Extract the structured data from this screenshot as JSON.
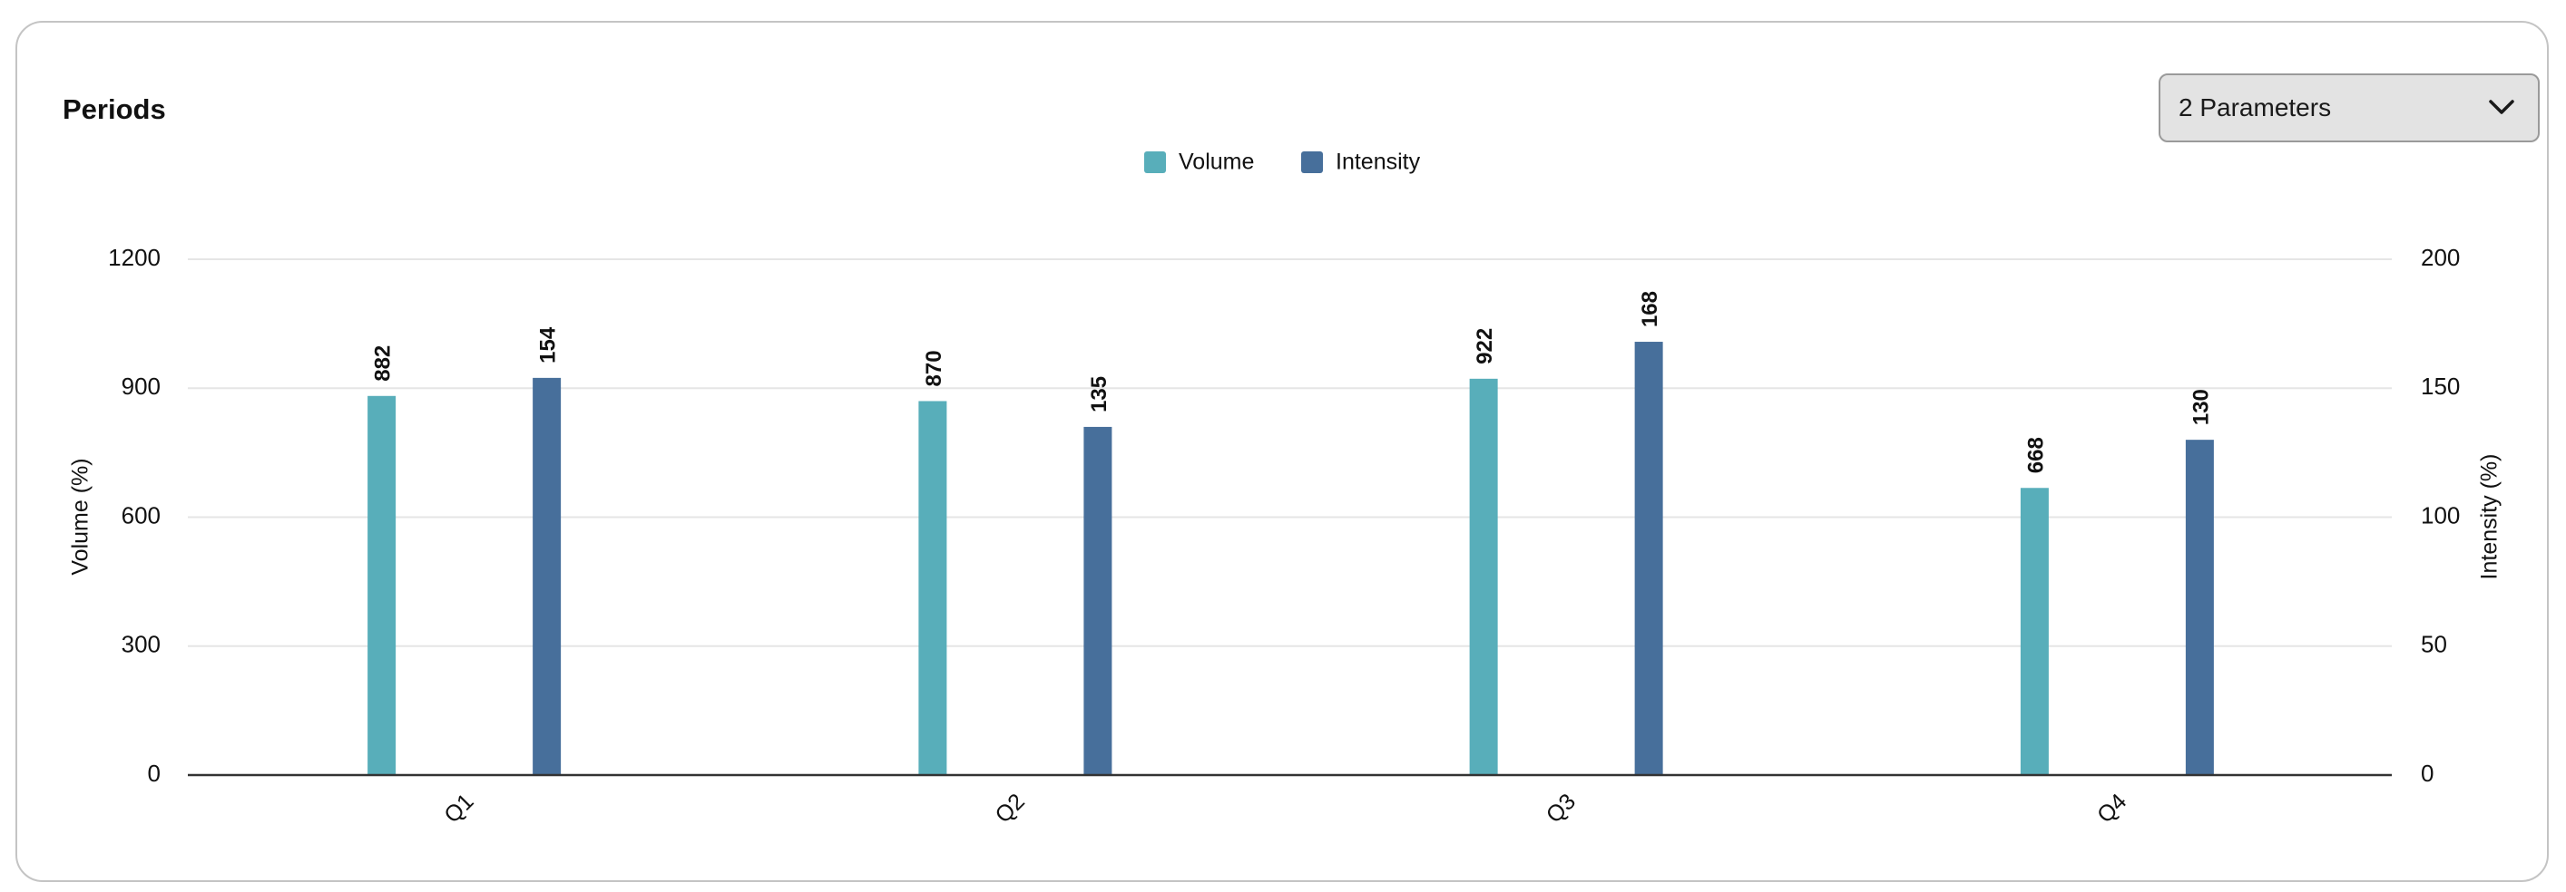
{
  "card": {
    "title": "Periods"
  },
  "parameter_select": {
    "value": "2 Parameters",
    "icon": "chevron-down-icon"
  },
  "colors": {
    "volume": "#58aeba",
    "intensity": "#476f9b",
    "grid": "#e5e5e5",
    "axis": "#333333",
    "text": "#111111"
  },
  "chart_data": {
    "type": "bar",
    "categories": [
      "Q1",
      "Q2",
      "Q3",
      "Q4"
    ],
    "series": [
      {
        "name": "Volume",
        "axis": "left",
        "values": [
          882,
          870,
          922,
          668
        ]
      },
      {
        "name": "Intensity",
        "axis": "right",
        "values": [
          154,
          135,
          168,
          130
        ]
      }
    ],
    "ylabel": "Volume (%)",
    "y2label": "Intensity (%)",
    "ylim": [
      0,
      1200
    ],
    "y2lim": [
      0,
      200
    ],
    "yticks": [
      0,
      300,
      600,
      900,
      1200
    ],
    "y2ticks": [
      0,
      50,
      100,
      150,
      200
    ],
    "grid": true,
    "legend_position": "top-center",
    "data_labels": true,
    "category_label_rotation": "-45deg"
  }
}
